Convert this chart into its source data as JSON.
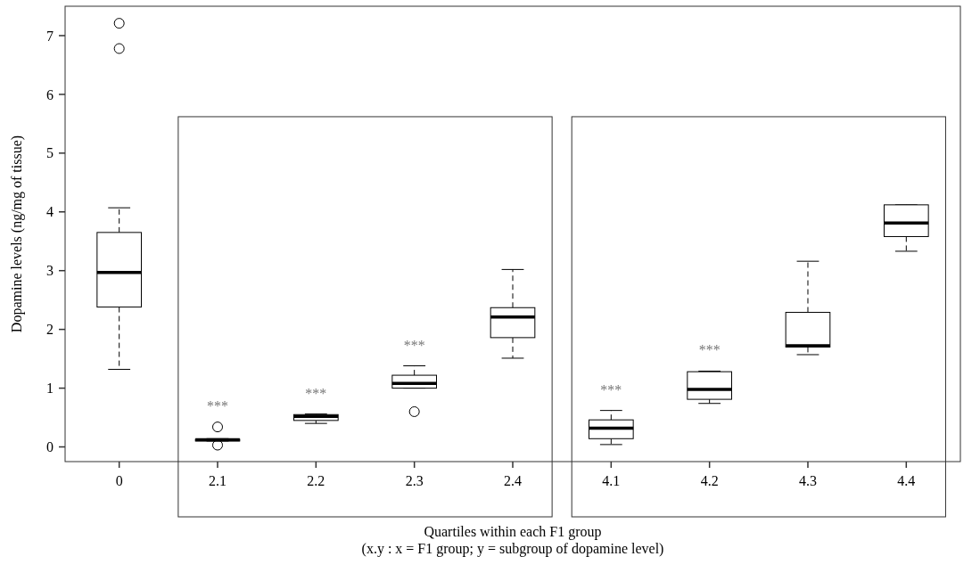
{
  "chart_data": {
    "type": "box",
    "ylabel": "Dopamine levels (ng/mg of tissue)",
    "xlabel": "Quartiles within each F1 group\n(x.y : x = F1 group; y = subgroup of dopamine level)",
    "categories": [
      "0",
      "2.1",
      "2.2",
      "2.3",
      "2.4",
      "4.1",
      "4.2",
      "4.3",
      "4.4"
    ],
    "boxes": [
      {
        "low": 1.32,
        "q1": 2.38,
        "median": 2.97,
        "q3": 3.65,
        "high": 4.07,
        "outliers": [
          6.78,
          7.21
        ]
      },
      {
        "low": 0.1,
        "q1": 0.1,
        "median": 0.12,
        "q3": 0.13,
        "high": 0.14,
        "outliers": [
          0.03,
          0.34
        ]
      },
      {
        "low": 0.4,
        "q1": 0.45,
        "median": 0.52,
        "q3": 0.55,
        "high": 0.56
      },
      {
        "low": 1.0,
        "q1": 1.0,
        "median": 1.08,
        "q3": 1.22,
        "high": 1.38,
        "outliers": [
          0.6
        ]
      },
      {
        "low": 1.51,
        "q1": 1.86,
        "median": 2.21,
        "q3": 2.37,
        "high": 3.02
      },
      {
        "low": 0.04,
        "q1": 0.14,
        "median": 0.32,
        "q3": 0.46,
        "high": 0.62
      },
      {
        "low": 0.74,
        "q1": 0.81,
        "median": 0.98,
        "q3": 1.28,
        "high": 1.29
      },
      {
        "low": 1.57,
        "q1": 1.7,
        "median": 1.72,
        "q3": 2.29,
        "high": 3.16
      },
      {
        "low": 3.33,
        "q1": 3.58,
        "median": 3.81,
        "q3": 4.12,
        "high": 4.12
      }
    ],
    "ylim": [
      -0.25,
      7.5
    ],
    "yticks": [
      0,
      1,
      2,
      3,
      4,
      5,
      6,
      7
    ],
    "grid": false,
    "annotations": [
      "***",
      "***",
      "***",
      "***",
      "***"
    ]
  }
}
